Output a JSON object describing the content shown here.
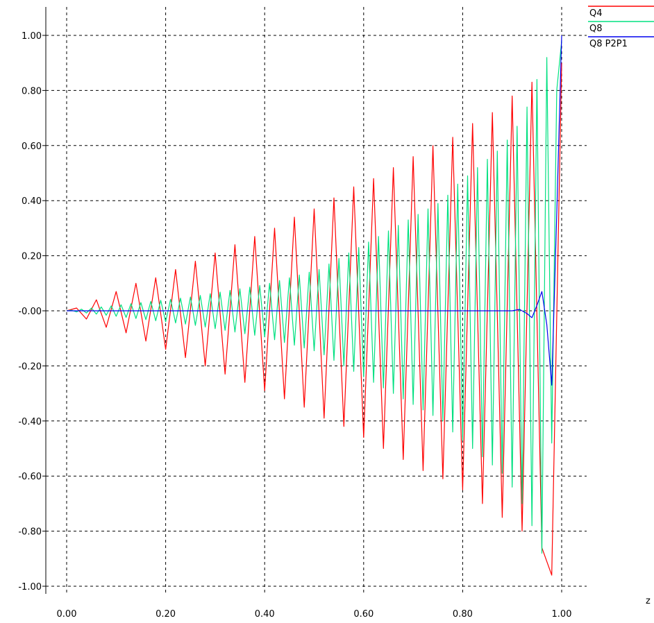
{
  "chart_data": {
    "type": "line",
    "title": "",
    "xlabel": "z",
    "ylabel": "",
    "xlim": [
      0,
      1
    ],
    "ylim": [
      -1,
      1
    ],
    "grid": true,
    "legend_position": "top-right",
    "x_tick_labels": [
      "0.00",
      "0.20",
      "0.40",
      "0.60",
      "0.80",
      "1.00"
    ],
    "x_ticks": [
      0,
      0.2,
      0.4,
      0.6,
      0.8,
      1.0
    ],
    "y_tick_labels": [
      "1.00",
      "0.80",
      "0.60",
      "0.40",
      "0.20",
      "-0.00",
      "-0.20",
      "-0.40",
      "-0.60",
      "-0.80",
      "-1.00"
    ],
    "y_ticks": [
      1.0,
      0.8,
      0.6,
      0.4,
      0.2,
      0.0,
      -0.2,
      -0.4,
      -0.6,
      -0.8,
      -1.0
    ],
    "series": [
      {
        "name": "Q4",
        "color": "#ff0000",
        "x": [
          0,
          0.02,
          0.04,
          0.06,
          0.08,
          0.1,
          0.12,
          0.14,
          0.16,
          0.18,
          0.2,
          0.22,
          0.24,
          0.26,
          0.28,
          0.3,
          0.32,
          0.34,
          0.36,
          0.38,
          0.4,
          0.42,
          0.44,
          0.46,
          0.48,
          0.5,
          0.52,
          0.54,
          0.56,
          0.58,
          0.6,
          0.62,
          0.64,
          0.66,
          0.68,
          0.7,
          0.72,
          0.74,
          0.76,
          0.78,
          0.8,
          0.82,
          0.84,
          0.86,
          0.88,
          0.9,
          0.92,
          0.94,
          0.96,
          0.98,
          1.0
        ],
        "y": [
          0,
          0.01,
          -0.03,
          0.04,
          -0.06,
          0.07,
          -0.08,
          0.1,
          -0.11,
          0.12,
          -0.14,
          0.15,
          -0.17,
          0.18,
          -0.2,
          0.21,
          -0.23,
          0.24,
          -0.26,
          0.27,
          -0.29,
          0.3,
          -0.32,
          0.34,
          -0.35,
          0.37,
          -0.39,
          0.41,
          -0.42,
          0.45,
          -0.46,
          0.48,
          -0.5,
          0.52,
          -0.54,
          0.56,
          -0.58,
          0.6,
          -0.61,
          0.63,
          -0.65,
          0.68,
          -0.7,
          0.72,
          -0.75,
          0.78,
          -0.8,
          0.83,
          -0.86,
          -0.96,
          0.9
        ]
      },
      {
        "name": "Q8",
        "color": "#00e080",
        "x": [
          0,
          0.01,
          0.02,
          0.03,
          0.04,
          0.05,
          0.06,
          0.07,
          0.08,
          0.09,
          0.1,
          0.11,
          0.12,
          0.13,
          0.14,
          0.15,
          0.16,
          0.17,
          0.18,
          0.19,
          0.2,
          0.21,
          0.22,
          0.23,
          0.24,
          0.25,
          0.26,
          0.27,
          0.28,
          0.29,
          0.3,
          0.31,
          0.32,
          0.33,
          0.34,
          0.35,
          0.36,
          0.37,
          0.38,
          0.39,
          0.4,
          0.41,
          0.42,
          0.43,
          0.44,
          0.45,
          0.46,
          0.47,
          0.48,
          0.49,
          0.5,
          0.51,
          0.52,
          0.53,
          0.54,
          0.55,
          0.56,
          0.57,
          0.58,
          0.59,
          0.6,
          0.61,
          0.62,
          0.63,
          0.64,
          0.65,
          0.66,
          0.67,
          0.68,
          0.69,
          0.7,
          0.71,
          0.72,
          0.73,
          0.74,
          0.75,
          0.76,
          0.77,
          0.78,
          0.79,
          0.8,
          0.81,
          0.82,
          0.83,
          0.84,
          0.85,
          0.86,
          0.87,
          0.88,
          0.89,
          0.9,
          0.91,
          0.92,
          0.93,
          0.94,
          0.95,
          0.96,
          0.97,
          0.98,
          0.99,
          1.0
        ],
        "y": [
          0,
          0.002,
          -0.004,
          0.006,
          -0.008,
          0.01,
          -0.012,
          0.014,
          -0.016,
          0.018,
          -0.02,
          0.022,
          -0.024,
          0.026,
          -0.028,
          0.03,
          -0.032,
          0.034,
          -0.036,
          0.038,
          -0.04,
          0.042,
          -0.044,
          0.046,
          -0.048,
          0.05,
          -0.053,
          0.056,
          -0.059,
          0.062,
          -0.065,
          0.068,
          -0.071,
          0.074,
          -0.077,
          0.08,
          -0.083,
          0.086,
          -0.089,
          0.092,
          -0.095,
          0.1,
          -0.105,
          0.11,
          -0.115,
          0.12,
          -0.125,
          0.13,
          -0.135,
          0.14,
          -0.145,
          0.15,
          -0.16,
          0.17,
          -0.18,
          0.19,
          -0.2,
          0.21,
          -0.22,
          0.23,
          -0.24,
          0.25,
          -0.26,
          0.27,
          -0.28,
          0.29,
          -0.3,
          0.31,
          -0.32,
          0.33,
          -0.34,
          0.35,
          -0.36,
          0.37,
          -0.38,
          0.39,
          -0.4,
          0.42,
          -0.44,
          0.46,
          -0.47,
          0.49,
          -0.5,
          0.52,
          -0.53,
          0.55,
          -0.56,
          0.58,
          -0.59,
          0.62,
          -0.64,
          0.67,
          -0.7,
          0.74,
          -0.78,
          0.84,
          -0.88,
          0.92,
          -0.48,
          0.8,
          0.98
        ]
      },
      {
        "name": "Q8  P2P1",
        "color": "#0000ee",
        "x": [
          0,
          0.1,
          0.2,
          0.3,
          0.4,
          0.5,
          0.6,
          0.7,
          0.8,
          0.9,
          0.915,
          0.93,
          0.94,
          0.95,
          0.96,
          0.97,
          0.98,
          0.99,
          1.0
        ],
        "y": [
          0,
          0,
          0,
          0,
          0,
          0,
          0,
          0,
          0,
          0,
          0.005,
          -0.01,
          -0.025,
          0.02,
          0.07,
          -0.05,
          -0.27,
          0.35,
          1.0
        ]
      }
    ]
  }
}
